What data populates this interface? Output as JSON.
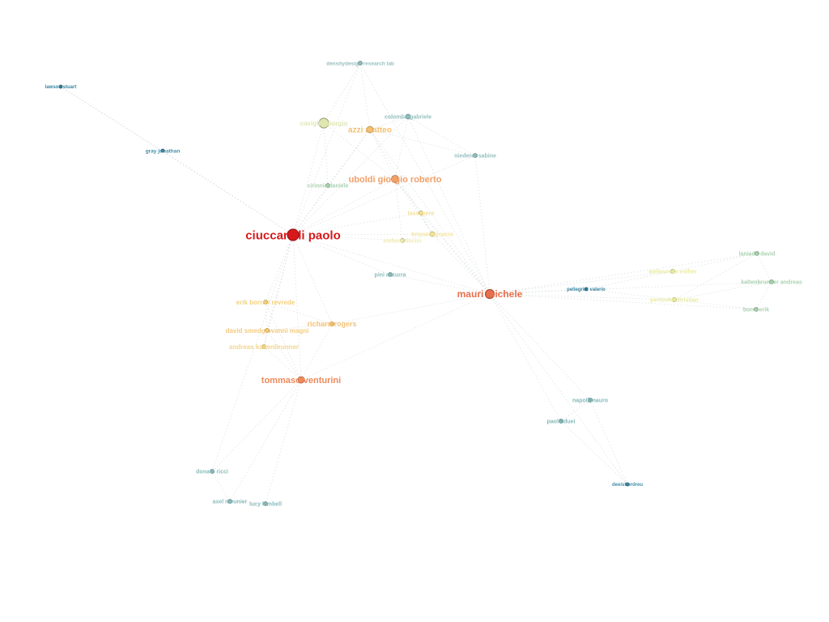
{
  "graph": {
    "type": "network",
    "colors": {
      "background": "#ffffff",
      "edge": "#cfd6d8",
      "red": "#d7191c",
      "orange": "#e8704c",
      "light_orange": "#f0a068",
      "yellow": "#f3cf78",
      "pale_yellow": "#e9ea9c",
      "pale_green": "#b9dcaa",
      "teal": "#7fb5b5",
      "dark_teal": "#2c7c9a"
    },
    "nodes": [
      {
        "id": "ciuccarelli",
        "label": "ciuccarelli paolo",
        "color": "#d7191c"
      },
      {
        "id": "mauri",
        "label": "mauri michele",
        "color": "#e8704c"
      },
      {
        "id": "uboldi",
        "label": "uboldi giorgio roberto",
        "color": "#f0a068"
      },
      {
        "id": "venturini",
        "label": "tommaso venturini",
        "color": "#ee8a5c"
      },
      {
        "id": "azzi",
        "label": "azzi matteo",
        "color": "#f3c071"
      },
      {
        "id": "caviglia",
        "label": "caviglia giorgio",
        "color": "#dfe6b0"
      },
      {
        "id": "density",
        "label": "densitydesign research lab",
        "color": "#8fbcbc"
      },
      {
        "id": "colombo",
        "label": "colombo gabriele",
        "color": "#8fbcbc"
      },
      {
        "id": "niederer",
        "label": "niederer sabine",
        "color": "#8fbcbc"
      },
      {
        "id": "cirinnia",
        "label": "cirinnia daniele",
        "color": "#a6d0ad"
      },
      {
        "id": "lawson",
        "label": "lawson stuart",
        "color": "#2c7c9a"
      },
      {
        "id": "gray",
        "label": "gray jonathan",
        "color": "#3a87a3"
      },
      {
        "id": "tassi",
        "label": "tassi paro",
        "color": "#f6e08d"
      },
      {
        "id": "briones",
        "label": "briones ignacio",
        "color": "#f4e49a"
      },
      {
        "id": "stefano",
        "label": "stefano tincini",
        "color": "#eeeaa8"
      },
      {
        "id": "pini",
        "label": "pini azzurra",
        "color": "#86b8b8"
      },
      {
        "id": "ericrevrede",
        "label": "erik borra / revrede",
        "color": "#f3cf78"
      },
      {
        "id": "rogers",
        "label": "richard rogers",
        "color": "#f3c071"
      },
      {
        "id": "magni",
        "label": "david smedgiovanni magni",
        "color": "#f3c878"
      },
      {
        "id": "kaltenbrunner1",
        "label": "andreas kaltenbrunner",
        "color": "#f3d384"
      },
      {
        "id": "donato",
        "label": "donato ricci",
        "color": "#86b8b8"
      },
      {
        "id": "meunier",
        "label": "axel meunier",
        "color": "#86b8b8"
      },
      {
        "id": "kimbell",
        "label": "lucy kimbell",
        "color": "#86b8b8"
      },
      {
        "id": "pellegrini",
        "label": "pellegrini valerio",
        "color": "#2c7c9a"
      },
      {
        "id": "weltevrede",
        "label": "weltevrede esther",
        "color": "#e9ea9c"
      },
      {
        "id": "laniado",
        "label": "laniado david",
        "color": "#a6d0ad"
      },
      {
        "id": "kaltenbrunner2",
        "label": "kaltenbrunner andreas",
        "color": "#a6d0ad"
      },
      {
        "id": "pentzold",
        "label": "pentzold christian",
        "color": "#e9ea9c"
      },
      {
        "id": "borra",
        "label": "borra erik",
        "color": "#a6d0ad"
      },
      {
        "id": "napoli",
        "label": "napoli mauro",
        "color": "#7fb5b5"
      },
      {
        "id": "duei",
        "label": "paolo duei",
        "color": "#7fb5b5"
      },
      {
        "id": "deeist",
        "label": "deeist ordreu",
        "color": "#3a87a3"
      }
    ],
    "edges": [
      [
        "ciuccarelli",
        "mauri"
      ],
      [
        "ciuccarelli",
        "uboldi"
      ],
      [
        "ciuccarelli",
        "azzi"
      ],
      [
        "ciuccarelli",
        "caviglia"
      ],
      [
        "ciuccarelli",
        "density"
      ],
      [
        "ciuccarelli",
        "lawson"
      ],
      [
        "ciuccarelli",
        "gray"
      ],
      [
        "ciuccarelli",
        "cirinnia"
      ],
      [
        "ciuccarelli",
        "tassi"
      ],
      [
        "ciuccarelli",
        "briones"
      ],
      [
        "ciuccarelli",
        "stefano"
      ],
      [
        "ciuccarelli",
        "pini"
      ],
      [
        "ciuccarelli",
        "ericrevrede"
      ],
      [
        "ciuccarelli",
        "rogers"
      ],
      [
        "ciuccarelli",
        "magni"
      ],
      [
        "ciuccarelli",
        "kaltenbrunner1"
      ],
      [
        "ciuccarelli",
        "venturini"
      ],
      [
        "ciuccarelli",
        "niederer"
      ],
      [
        "ciuccarelli",
        "colombo"
      ],
      [
        "ciuccarelli",
        "donato"
      ],
      [
        "mauri",
        "uboldi"
      ],
      [
        "mauri",
        "azzi"
      ],
      [
        "mauri",
        "density"
      ],
      [
        "mauri",
        "niederer"
      ],
      [
        "mauri",
        "tassi"
      ],
      [
        "mauri",
        "briones"
      ],
      [
        "mauri",
        "pini"
      ],
      [
        "mauri",
        "venturini"
      ],
      [
        "mauri",
        "rogers"
      ],
      [
        "mauri",
        "pellegrini"
      ],
      [
        "mauri",
        "weltevrede"
      ],
      [
        "mauri",
        "pentzold"
      ],
      [
        "mauri",
        "laniado"
      ],
      [
        "mauri",
        "kaltenbrunner2"
      ],
      [
        "mauri",
        "borra"
      ],
      [
        "mauri",
        "napoli"
      ],
      [
        "mauri",
        "duei"
      ],
      [
        "mauri",
        "deeist"
      ],
      [
        "mauri",
        "colombo"
      ],
      [
        "uboldi",
        "azzi"
      ],
      [
        "uboldi",
        "caviglia"
      ],
      [
        "uboldi",
        "cirinnia"
      ],
      [
        "uboldi",
        "tassi"
      ],
      [
        "uboldi",
        "briones"
      ],
      [
        "uboldi",
        "stefano"
      ],
      [
        "uboldi",
        "colombo"
      ],
      [
        "azzi",
        "caviglia"
      ],
      [
        "azzi",
        "density"
      ],
      [
        "azzi",
        "colombo"
      ],
      [
        "azzi",
        "niederer"
      ],
      [
        "azzi",
        "cirinnia"
      ],
      [
        "azzi",
        "briones"
      ],
      [
        "caviglia",
        "density"
      ],
      [
        "caviglia",
        "cirinnia"
      ],
      [
        "venturini",
        "ericrevrede"
      ],
      [
        "venturini",
        "rogers"
      ],
      [
        "venturini",
        "magni"
      ],
      [
        "venturini",
        "kaltenbrunner1"
      ],
      [
        "venturini",
        "donato"
      ],
      [
        "venturini",
        "meunier"
      ],
      [
        "venturini",
        "kimbell"
      ],
      [
        "ericrevrede",
        "rogers"
      ],
      [
        "ericrevrede",
        "magni"
      ],
      [
        "rogers",
        "magni"
      ],
      [
        "magni",
        "kaltenbrunner1"
      ],
      [
        "pellegrini",
        "weltevrede"
      ],
      [
        "pellegrini",
        "pentzold"
      ],
      [
        "weltevrede",
        "laniado"
      ],
      [
        "pentzold",
        "laniado"
      ],
      [
        "pentzold",
        "kaltenbrunner2"
      ],
      [
        "pentzold",
        "borra"
      ],
      [
        "laniado",
        "kaltenbrunner2"
      ],
      [
        "kaltenbrunner2",
        "borra"
      ],
      [
        "napoli",
        "duei"
      ],
      [
        "napoli",
        "deeist"
      ],
      [
        "duei",
        "deeist"
      ],
      [
        "lawson",
        "gray"
      ],
      [
        "donato",
        "meunier"
      ],
      [
        "meunier",
        "kimbell"
      ],
      [
        "tassi",
        "briones"
      ],
      [
        "briones",
        "stefano"
      ],
      [
        "colombo",
        "niederer"
      ]
    ]
  }
}
